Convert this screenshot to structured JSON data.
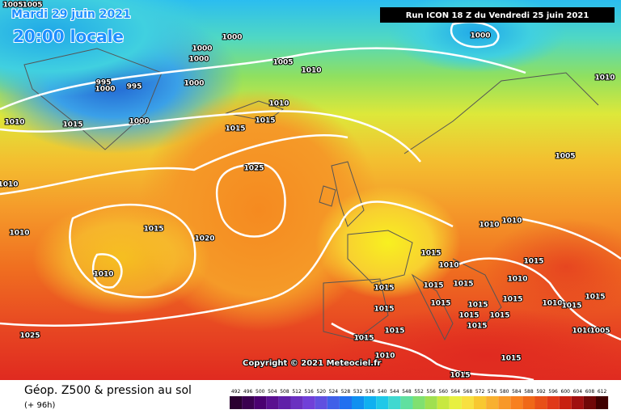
{
  "header": {
    "date": "Mardi 29 juin 2021",
    "time": "20:00 locale",
    "run": "Run ICON 18 Z du Vendredi 25 juin 2021"
  },
  "copyright": "Copyright © 2021 Meteociel.fr",
  "footer": {
    "title": "Géop. Z500 & pression au sol",
    "lead": "(+ 96h)"
  },
  "isobar_labels": [
    "1005",
    "1005",
    "1000",
    "1000",
    "1000",
    "1000",
    "995",
    "1000",
    "995",
    "1000",
    "1010",
    "1015",
    "1005",
    "1010",
    "1010",
    "1015",
    "1015",
    "1025",
    "1015",
    "1020",
    "1010",
    "1010",
    "1010",
    "1025",
    "1000",
    "1005",
    "1010",
    "1010",
    "1015",
    "1010",
    "1015",
    "1015",
    "1015",
    "1015",
    "1015",
    "1015",
    "1015",
    "1015",
    "1015",
    "1010",
    "1015",
    "1015",
    "1010",
    "1005",
    "1015",
    "1015",
    "1015",
    "1010",
    "1015",
    "1015",
    "1010",
    "1015",
    "1010"
  ],
  "legend": {
    "values": [
      492,
      496,
      500,
      504,
      508,
      512,
      516,
      520,
      524,
      528,
      532,
      536,
      540,
      544,
      548,
      552,
      556,
      560,
      564,
      568,
      572,
      576,
      580,
      584,
      588,
      592,
      596,
      600,
      604,
      608,
      612
    ],
    "colors": [
      "#2a0030",
      "#3a0050",
      "#4a0070",
      "#5a1090",
      "#6020a8",
      "#6a30c0",
      "#7040d8",
      "#6050e0",
      "#4060e8",
      "#2070f0",
      "#1090f0",
      "#10b0f0",
      "#20c8e8",
      "#40d8d0",
      "#60e0a0",
      "#80e070",
      "#a0e050",
      "#c8e840",
      "#e8f040",
      "#f8e040",
      "#f8c830",
      "#f8b030",
      "#f89828",
      "#f88020",
      "#f06818",
      "#e85018",
      "#e03818",
      "#c82010",
      "#a01010",
      "#700808",
      "#400000"
    ]
  }
}
